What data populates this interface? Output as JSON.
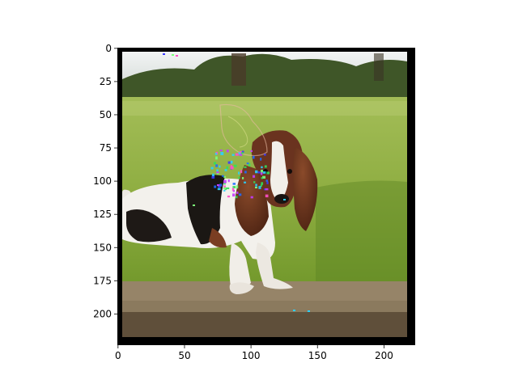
{
  "chart_data": {
    "type": "image",
    "title": "",
    "xlabel": "",
    "ylabel": "",
    "xlim": [
      -0.5,
      223.5
    ],
    "ylim": [
      223.5,
      -0.5
    ],
    "y_inverted": true,
    "x_ticks": [
      0,
      50,
      100,
      150,
      200
    ],
    "y_ticks": [
      0,
      25,
      50,
      75,
      100,
      125,
      150,
      175,
      200
    ],
    "grid": false,
    "image_content": {
      "subject": "basset-hound",
      "frame_border_color": "#000000",
      "colors": {
        "sky": "#eef1f2",
        "tree_line": "#3d5326",
        "grass_far": "#97b54a",
        "grass_near": "#7da233",
        "board_top": "#968468",
        "board_side": "#6a5a44",
        "dog_white": "#f4f2ee",
        "dog_black": "#1b1714",
        "dog_brown": "#6b3420",
        "dog_tan": "#9a5a36"
      },
      "overlay": "saliency-noise-speckles"
    }
  }
}
